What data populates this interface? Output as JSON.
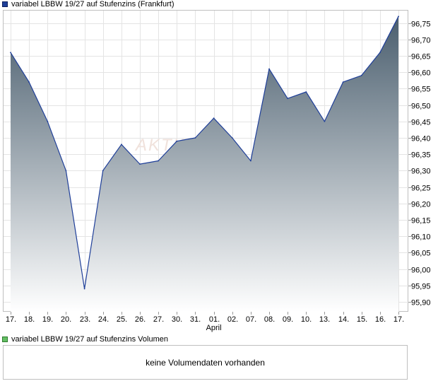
{
  "price_legend": {
    "label": "variabel LBBW 19/27 auf Stufenzins (Frankfurt)",
    "color": "#1f3f99"
  },
  "volume_legend": {
    "label": "variabel LBBW 19/27 auf Stufenzins Volumen",
    "color": "#63bf63"
  },
  "volume_panel": {
    "message": "keine Volumendaten vorhanden"
  },
  "watermark": "AKTIEN",
  "chart_data": {
    "type": "area",
    "title": "variabel LBBW 19/27 auf Stufenzins (Frankfurt)",
    "categories": [
      "17.",
      "18.",
      "19.",
      "20.",
      "23.",
      "24.",
      "25.",
      "26.",
      "27.",
      "30.",
      "31.",
      "01.",
      "02.",
      "07.",
      "08.",
      "09.",
      "10.",
      "13.",
      "14.",
      "15.",
      "16.",
      "17."
    ],
    "month_label": {
      "text": "April",
      "category_index": 11
    },
    "values": [
      96.66,
      96.57,
      96.45,
      96.3,
      95.94,
      96.3,
      96.38,
      96.32,
      96.33,
      96.39,
      96.4,
      96.46,
      96.4,
      96.33,
      96.61,
      96.52,
      96.54,
      96.45,
      96.57,
      96.59,
      96.66,
      96.77
    ],
    "y_ticks": [
      "95,90",
      "95,95",
      "96,00",
      "96,05",
      "96,10",
      "96,15",
      "96,20",
      "96,25",
      "96,30",
      "96,35",
      "96,40",
      "96,45",
      "96,50",
      "96,55",
      "96,60",
      "96,65",
      "96,70",
      "96,75"
    ],
    "y_tick_values": [
      95.9,
      95.95,
      96.0,
      96.05,
      96.1,
      96.15,
      96.2,
      96.25,
      96.3,
      96.35,
      96.4,
      96.45,
      96.5,
      96.55,
      96.6,
      96.65,
      96.7,
      96.75
    ],
    "ylim": [
      95.87,
      96.79
    ],
    "grid": true,
    "line_color": "#1f3f99",
    "fill_top_color": "#4a5e6e",
    "fill_bottom_color": "#ffffff",
    "xlabel": "",
    "ylabel": ""
  }
}
